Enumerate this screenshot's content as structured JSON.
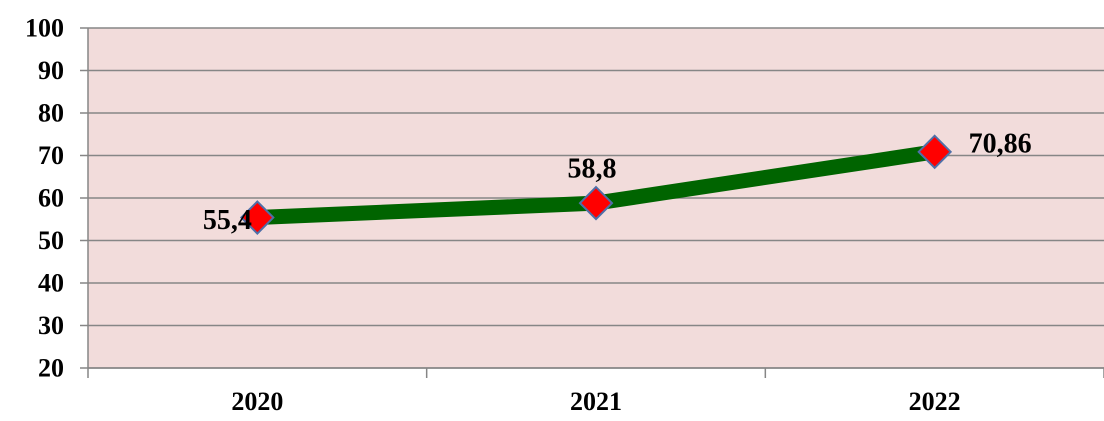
{
  "chart_data": {
    "type": "line",
    "categories": [
      "2020",
      "2021",
      "2022"
    ],
    "series": [
      {
        "values": [
          55.4,
          58.8,
          70.86
        ],
        "labels": [
          "55,4",
          "58,8",
          "70,86"
        ],
        "line_color": "#006400",
        "marker_fill": "#ff0000",
        "marker_stroke": "#4f6fa8",
        "marker_shape": "diamond"
      }
    ],
    "ylim": [
      20,
      100
    ],
    "yticks": [
      "20",
      "30",
      "40",
      "50",
      "60",
      "70",
      "80",
      "90",
      "100"
    ],
    "title": "",
    "xlabel": "",
    "ylabel": "",
    "grid": true,
    "plot_background": "#f2dcdb",
    "gridline_color": "#868686"
  }
}
